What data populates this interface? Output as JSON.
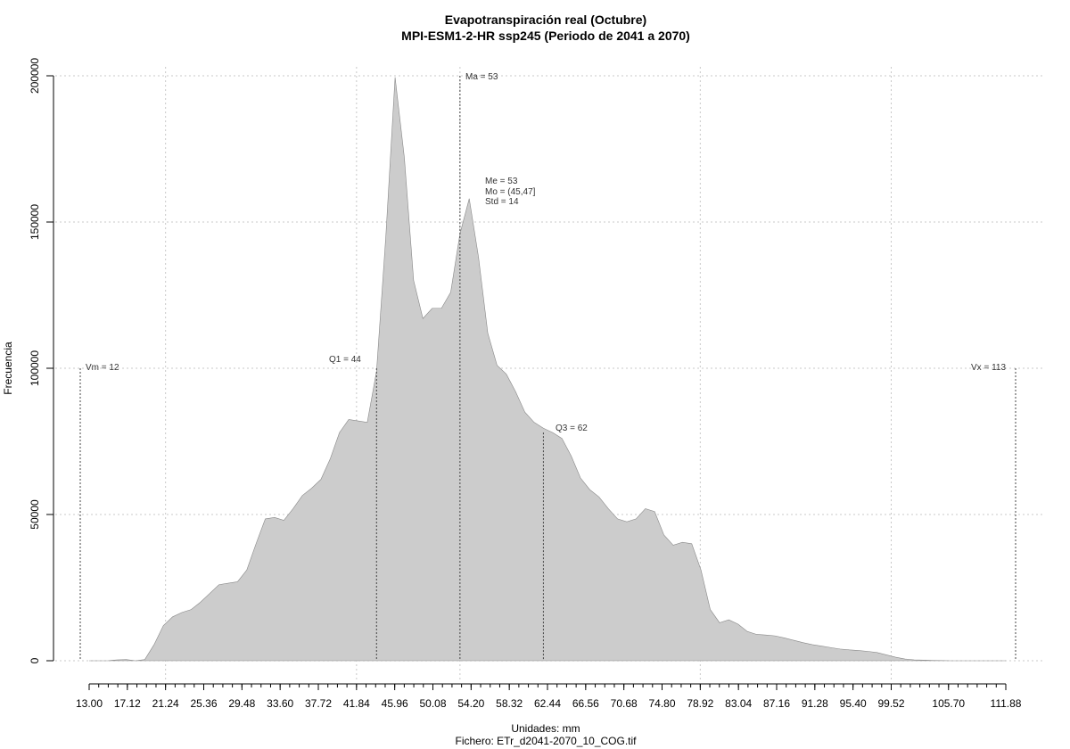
{
  "chart_data": {
    "type": "area",
    "title": "Evapotranspiración real (Octubre)",
    "subtitle": "MPI-ESM1-2-HR ssp245 (Periodo de 2041 a 2070)",
    "xlabel": "Unidades: mm",
    "caption": "Fichero: ETr_d2041-2070_10_COG.tif",
    "ylabel": "Frecuencia",
    "xlim": [
      13.0,
      111.88
    ],
    "ylim": [
      0,
      200000
    ],
    "x_ticks": [
      "13.00",
      "17.12",
      "21.24",
      "25.36",
      "29.48",
      "33.60",
      "37.72",
      "41.84",
      "45.96",
      "50.08",
      "54.20",
      "58.32",
      "62.44",
      "66.56",
      "70.68",
      "74.80",
      "78.92",
      "83.04",
      "87.16",
      "91.28",
      "95.40",
      "99.52",
      "105.70",
      "111.88"
    ],
    "y_ticks": [
      "0",
      "50000",
      "100000",
      "150000",
      "200000"
    ],
    "grid": true,
    "fill_color": "#cccccc",
    "x": [
      13.0,
      14.0,
      15.0,
      16.0,
      17.0,
      18.0,
      19.0,
      20.0,
      21.0,
      22.0,
      23.0,
      24.0,
      25.0,
      26.0,
      27.0,
      28.0,
      29.0,
      30.0,
      31.0,
      32.0,
      33.0,
      34.0,
      35.0,
      36.0,
      37.0,
      38.0,
      39.0,
      40.0,
      41.0,
      42.0,
      43.0,
      44.0,
      45.0,
      46.0,
      47.0,
      48.0,
      49.0,
      50.0,
      51.0,
      52.0,
      53.0,
      54.0,
      55.0,
      56.0,
      57.0,
      58.0,
      59.0,
      60.0,
      61.0,
      62.0,
      63.0,
      64.0,
      65.0,
      66.0,
      67.0,
      68.0,
      69.0,
      70.0,
      71.0,
      72.0,
      73.0,
      74.0,
      75.0,
      76.0,
      77.0,
      78.0,
      79.0,
      80.0,
      81.0,
      82.0,
      83.0,
      84.0,
      85.0,
      86.0,
      87.0,
      88.0,
      89.0,
      90.0,
      91.0,
      92.0,
      93.0,
      94.0,
      95.0,
      96.0,
      97.0,
      98.0,
      99.0,
      100.0,
      101.0,
      102.0,
      103.0,
      104.0,
      105.0,
      106.0,
      107.0,
      108.0,
      109.0,
      110.0,
      111.0,
      111.88
    ],
    "y": [
      0,
      0,
      0,
      300,
      400,
      0,
      400,
      5500,
      12000,
      15000,
      16500,
      17500,
      20000,
      23000,
      26000,
      26500,
      27000,
      31000,
      40000,
      48500,
      49000,
      48000,
      52000,
      56500,
      59000,
      62000,
      69000,
      78000,
      82500,
      82000,
      81500,
      99000,
      145000,
      199500,
      172000,
      130000,
      117000,
      120500,
      120500,
      126000,
      146000,
      158000,
      138000,
      112000,
      101000,
      98000,
      92000,
      85000,
      81500,
      79500,
      78000,
      76000,
      70000,
      62500,
      58500,
      56000,
      52000,
      48500,
      47500,
      48500,
      52000,
      51000,
      43000,
      39500,
      40500,
      40000,
      31000,
      17500,
      13000,
      14000,
      12500,
      10000,
      9000,
      8800,
      8500,
      7800,
      7000,
      6200,
      5500,
      5000,
      4500,
      4000,
      3700,
      3500,
      3200,
      2800,
      2000,
      1200,
      600,
      300,
      200,
      100,
      50,
      0,
      0,
      0,
      0,
      0,
      0,
      0
    ],
    "annotations": {
      "vm": "Vm = 12",
      "ma": "Ma = 53",
      "q1": "Q1 = 44",
      "q3": "Q3 = 62",
      "vx": "Vx = 113",
      "stats": [
        "Me = 53",
        "Mo = (45,47]",
        "Std = 14"
      ]
    },
    "markers": {
      "vm": 12,
      "q1": 44,
      "ma": 53,
      "q3": 62,
      "vx": 113
    }
  }
}
